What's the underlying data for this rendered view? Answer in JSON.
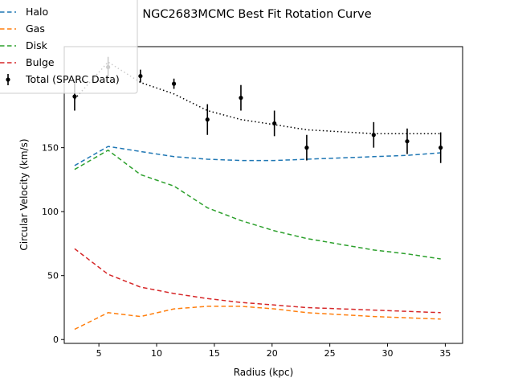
{
  "chart_data": {
    "type": "line",
    "title": "NGC2683MCMC Best Fit Rotation Curve",
    "xlabel": "Radius (kpc)",
    "ylabel": "Circular Velocity (km/s)",
    "xlim": [
      2,
      36.5
    ],
    "ylim": [
      -3,
      229
    ],
    "xticks": [
      5,
      10,
      15,
      20,
      25,
      30,
      35
    ],
    "yticks": [
      0,
      50,
      100,
      150
    ],
    "legend_position": "upper-left",
    "grid": false,
    "x": [
      2.9,
      5.8,
      8.6,
      11.5,
      14.4,
      17.3,
      20.2,
      23.0,
      28.8,
      31.7,
      34.6
    ],
    "series": [
      {
        "name": "Total",
        "style": "dotted",
        "color": "#000000",
        "values": [
          188,
          217,
          201,
          192,
          179,
          172,
          168,
          164,
          161,
          161,
          161
        ]
      },
      {
        "name": "Halo",
        "style": "dashed",
        "color": "#1f77b4",
        "values": [
          136,
          151,
          147,
          143,
          141,
          140,
          140,
          141,
          143,
          144,
          146
        ]
      },
      {
        "name": "Gas",
        "style": "dashed",
        "color": "#ff7f0e",
        "values": [
          8,
          21,
          18,
          24,
          26,
          26,
          24,
          21,
          18,
          17,
          16
        ]
      },
      {
        "name": "Disk",
        "style": "dashed",
        "color": "#2ca02c",
        "values": [
          133,
          148,
          129,
          120,
          103,
          93,
          85,
          79,
          70,
          67,
          63
        ]
      },
      {
        "name": "Bulge",
        "style": "dashed",
        "color": "#d62728",
        "values": [
          71,
          51,
          41,
          36,
          32,
          29,
          27,
          25,
          23,
          22,
          21
        ]
      }
    ],
    "observed": {
      "name": "Total (SPARC Data)",
      "color": "#000000",
      "x": [
        2.9,
        5.8,
        8.6,
        11.5,
        14.4,
        17.3,
        20.2,
        23.0,
        28.8,
        31.7,
        34.6
      ],
      "y": [
        190,
        213,
        206,
        200,
        172,
        189,
        169,
        150,
        160,
        155,
        150
      ],
      "err": [
        11,
        8,
        5,
        4,
        12,
        10,
        10,
        10,
        10,
        10,
        12
      ]
    }
  }
}
